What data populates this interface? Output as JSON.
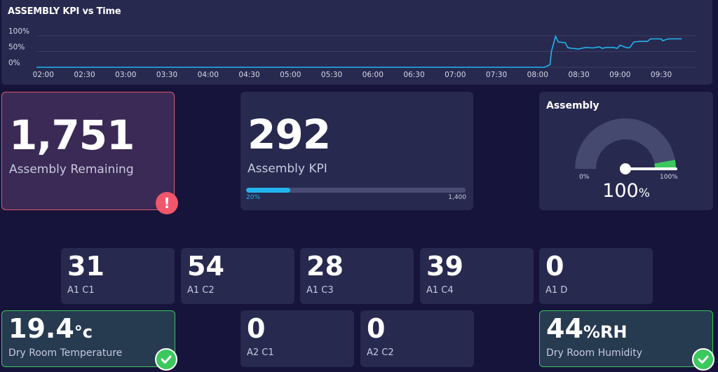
{
  "chart_data": {
    "type": "line",
    "title": "ASSEMBLY KPI vs Time",
    "y_ticks": [
      "100%",
      "50%",
      "0%"
    ],
    "ylim": [
      0,
      100
    ],
    "x_ticks": [
      "02:00",
      "02:30",
      "03:00",
      "03:30",
      "04:00",
      "04:30",
      "05:00",
      "05:30",
      "06:00",
      "06:30",
      "07:00",
      "07:30",
      "08:00",
      "08:30",
      "09:00",
      "09:30"
    ],
    "xlim": [
      "01:55",
      "09:55"
    ],
    "grid": true,
    "line_color": "#22b4ee",
    "x": [
      "01:55",
      "08:05",
      "08:09",
      "08:10",
      "08:13",
      "08:15",
      "08:18",
      "08:20",
      "08:22",
      "08:25",
      "08:30",
      "08:35",
      "08:40",
      "08:45",
      "08:47",
      "08:50",
      "08:55",
      "08:58",
      "09:00",
      "09:03",
      "09:05",
      "09:07",
      "09:10",
      "09:15",
      "09:20",
      "09:22",
      "09:25",
      "09:30",
      "09:31",
      "09:35",
      "09:40",
      "09:45"
    ],
    "y": [
      0,
      0,
      8,
      50,
      98,
      80,
      79,
      78,
      62,
      60,
      58,
      63,
      61,
      65,
      60,
      63,
      63,
      60,
      70,
      65,
      62,
      62,
      80,
      82,
      82,
      90,
      90,
      90,
      84,
      90,
      90,
      90
    ]
  },
  "remaining": {
    "value": "1,751",
    "label": "Assembly Remaining",
    "badge": "!"
  },
  "kpi": {
    "value": "292",
    "label": "Assembly KPI",
    "progress": 0.2,
    "min_label": "20%",
    "max_label": "1,400"
  },
  "gauge": {
    "title": "Assembly",
    "value": "100",
    "unit": "%",
    "min_label": "0%",
    "max_label": "100%",
    "level": 1.0
  },
  "row1": [
    {
      "value": "31",
      "label": "A1 C1"
    },
    {
      "value": "54",
      "label": "A1 C2"
    },
    {
      "value": "28",
      "label": "A1 C3"
    },
    {
      "value": "39",
      "label": "A1 C4"
    },
    {
      "value": "0",
      "label": "A1 D"
    }
  ],
  "row2": [
    {
      "value": "0",
      "label": "A2 C1"
    },
    {
      "value": "0",
      "label": "A2 C2"
    }
  ],
  "temperature": {
    "value": "19.4",
    "unit": "°c",
    "label": "Dry Room Temperature"
  },
  "humidity": {
    "value": "44",
    "unit": "%RH",
    "label": "Dry Room Humidity"
  },
  "colors": {
    "accent": "#22b4ee",
    "alert": "#f0566c",
    "ok": "#3bc85d"
  }
}
